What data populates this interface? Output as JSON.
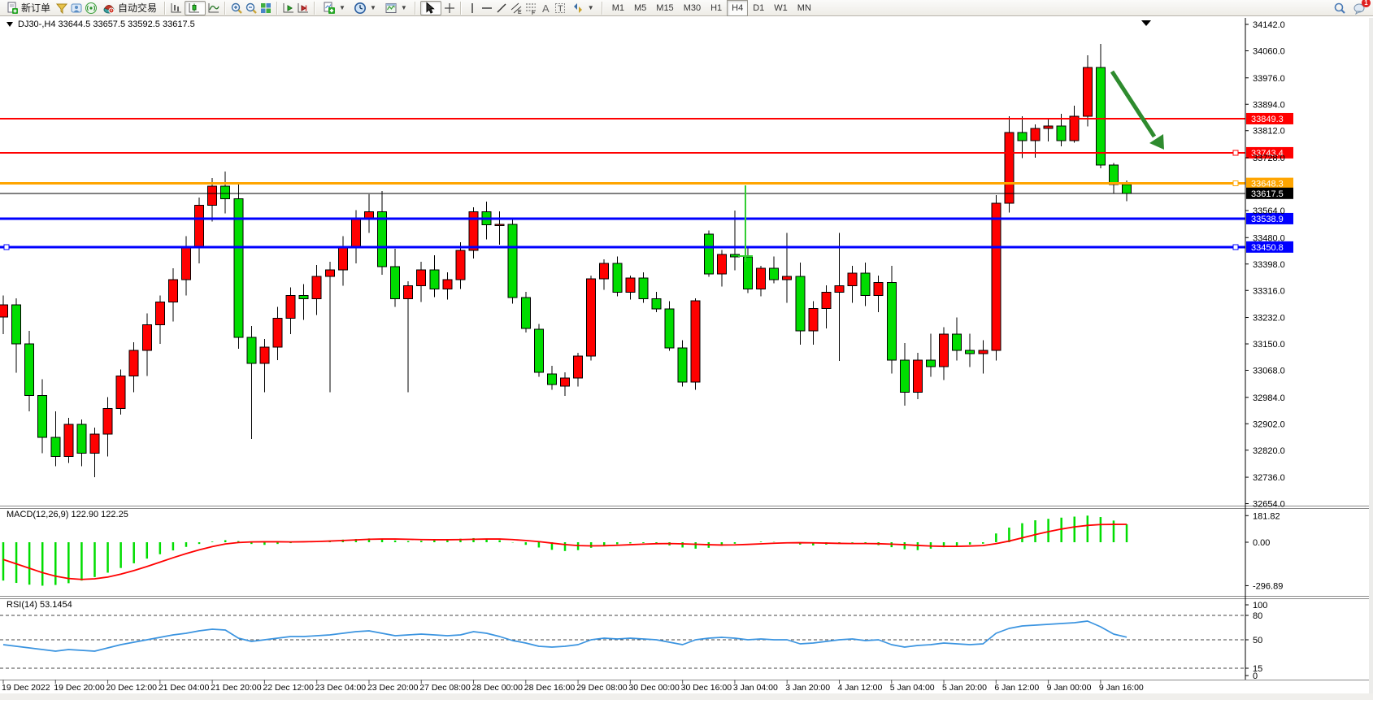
{
  "toolbar": {
    "new_order": "新订单",
    "auto_trading": "自动交易",
    "timeframes": [
      "M1",
      "M5",
      "M15",
      "M30",
      "H1",
      "H4",
      "D1",
      "W1",
      "MN"
    ],
    "active_timeframe": "H4",
    "notification_badge": "1"
  },
  "chart": {
    "title": "DJ30-,H4  33644.5 33657.5 33592.5 33617.5",
    "symbol": "DJ30-",
    "period": "H4",
    "current_price": "33617.5",
    "price_axis_ticks": [
      "34142.0",
      "34060.0",
      "33976.0",
      "33894.0",
      "33812.0",
      "33728.0",
      "33564.0",
      "33480.0",
      "33398.0",
      "33316.0",
      "33232.0",
      "33150.0",
      "33068.0",
      "32984.0",
      "32902.0",
      "32820.0",
      "32736.0",
      "32654.0"
    ],
    "levels": [
      {
        "label": "33849.3",
        "price": 33849.3,
        "color": "#ff0000",
        "width": 2,
        "handle_left": false,
        "handle_right": false
      },
      {
        "label": "33743.4",
        "price": 33743.4,
        "color": "#ff0000",
        "width": 2,
        "handle_left": false,
        "handle_right": true
      },
      {
        "label": "33648.3",
        "price": 33648.3,
        "color": "#ffa500",
        "width": 3,
        "handle_left": false,
        "handle_right": true
      },
      {
        "label": "33617.5",
        "price": 33617.5,
        "color": "#000000",
        "width": 1,
        "handle_left": false,
        "handle_right": false
      },
      {
        "label": "33538.9",
        "price": 33538.9,
        "color": "#0000ff",
        "width": 3,
        "handle_left": false,
        "handle_right": false
      },
      {
        "label": "33450.8",
        "price": 33450.8,
        "color": "#0000ff",
        "width": 3,
        "handle_left": true,
        "handle_right": true
      }
    ],
    "time_axis": [
      "19 Dec 2022",
      "19 Dec 20:00",
      "20 Dec 12:00",
      "21 Dec 04:00",
      "21 Dec 20:00",
      "22 Dec 12:00",
      "23 Dec 04:00",
      "23 Dec 20:00",
      "27 Dec 08:00",
      "28 Dec 00:00",
      "28 Dec 16:00",
      "29 Dec 08:00",
      "30 Dec 00:00",
      "30 Dec 16:00",
      "3 Jan 04:00",
      "3 Jan 20:00",
      "4 Jan 12:00",
      "5 Jan 04:00",
      "5 Jan 20:00",
      "6 Jan 12:00",
      "9 Jan 00:00",
      "9 Jan 16:00"
    ]
  },
  "chart_data": {
    "type": "candlestick",
    "symbol": "DJ30-",
    "timeframe": "H4",
    "title": "DJ30-,H4",
    "ylim_main": [
      32654,
      34142
    ],
    "bull_color": "#ff0000",
    "bear_color": "#00dd00",
    "note": "Chinese color convention: red = up candle, green = down candle",
    "candles_ohlc": [
      [
        33233,
        33300,
        33180,
        33271
      ],
      [
        33271,
        33292,
        33060,
        33150
      ],
      [
        33150,
        33190,
        32940,
        32990
      ],
      [
        32990,
        33040,
        32810,
        32860
      ],
      [
        32860,
        32940,
        32770,
        32800
      ],
      [
        32800,
        32920,
        32780,
        32900
      ],
      [
        32900,
        32915,
        32770,
        32810
      ],
      [
        32810,
        32890,
        32736,
        32870
      ],
      [
        32870,
        32985,
        32800,
        32950
      ],
      [
        32950,
        33070,
        32930,
        33050
      ],
      [
        33050,
        33155,
        33000,
        33130
      ],
      [
        33130,
        33245,
        33050,
        33210
      ],
      [
        33210,
        33300,
        33150,
        33280
      ],
      [
        33280,
        33385,
        33220,
        33350
      ],
      [
        33350,
        33485,
        33300,
        33450
      ],
      [
        33450,
        33605,
        33400,
        33580
      ],
      [
        33580,
        33665,
        33530,
        33640
      ],
      [
        33640,
        33685,
        33555,
        33600
      ],
      [
        33600,
        33645,
        33135,
        33170
      ],
      [
        33170,
        33205,
        32855,
        33090
      ],
      [
        33090,
        33165,
        33000,
        33140
      ],
      [
        33140,
        33265,
        33100,
        33230
      ],
      [
        33230,
        33325,
        33180,
        33300
      ],
      [
        33300,
        33335,
        33225,
        33290
      ],
      [
        33290,
        33395,
        33240,
        33360
      ],
      [
        33360,
        33405,
        33000,
        33380
      ],
      [
        33380,
        33485,
        33330,
        33450
      ],
      [
        33450,
        33565,
        33400,
        33540
      ],
      [
        33540,
        33615,
        33495,
        33560
      ],
      [
        33560,
        33625,
        33365,
        33390
      ],
      [
        33390,
        33445,
        33265,
        33290
      ],
      [
        33290,
        33345,
        33000,
        33330
      ],
      [
        33330,
        33405,
        33280,
        33380
      ],
      [
        33380,
        33425,
        33295,
        33320
      ],
      [
        33320,
        33372,
        33288,
        33350
      ],
      [
        33350,
        33465,
        33320,
        33440
      ],
      [
        33440,
        33574,
        33415,
        33560
      ],
      [
        33560,
        33592,
        33475,
        33520
      ],
      [
        33520,
        33562,
        33458,
        33521
      ],
      [
        33521,
        33542,
        33275,
        33294
      ],
      [
        33294,
        33312,
        33185,
        33198
      ],
      [
        33196,
        33212,
        33048,
        33062
      ],
      [
        33057,
        33082,
        33008,
        33024
      ],
      [
        33019,
        33062,
        32988,
        33044
      ],
      [
        33044,
        33122,
        33018,
        33112
      ],
      [
        33112,
        33362,
        33098,
        33352
      ],
      [
        33352,
        33412,
        33318,
        33400
      ],
      [
        33400,
        33422,
        33298,
        33310
      ],
      [
        33310,
        33362,
        33288,
        33354
      ],
      [
        33354,
        33372,
        33278,
        33290
      ],
      [
        33290,
        33312,
        33248,
        33258
      ],
      [
        33258,
        33282,
        33128,
        33137
      ],
      [
        33137,
        33162,
        33018,
        33031
      ],
      [
        33031,
        33292,
        33008,
        33284
      ],
      [
        33491,
        33502,
        33358,
        33367
      ],
      [
        33367,
        33442,
        33328,
        33428
      ],
      [
        33428,
        33564,
        33378,
        33420
      ],
      [
        33420,
        33452,
        33308,
        33320
      ],
      [
        33320,
        33392,
        33298,
        33385
      ],
      [
        33385,
        33422,
        33338,
        33350
      ],
      [
        33350,
        33494,
        33278,
        33360
      ],
      [
        33360,
        33402,
        33148,
        33190
      ],
      [
        33190,
        33282,
        33148,
        33260
      ],
      [
        33260,
        33332,
        33198,
        33310
      ],
      [
        33310,
        33494,
        33097,
        33330
      ],
      [
        33330,
        33392,
        33278,
        33370
      ],
      [
        33370,
        33402,
        33268,
        33300
      ],
      [
        33300,
        33362,
        33248,
        33340
      ],
      [
        33340,
        33392,
        33058,
        33100
      ],
      [
        33100,
        33152,
        32958,
        33000
      ],
      [
        33000,
        33122,
        32978,
        33100
      ],
      [
        33100,
        33182,
        33048,
        33080
      ],
      [
        33080,
        33202,
        33038,
        33180
      ],
      [
        33180,
        33232,
        33098,
        33130
      ],
      [
        33130,
        33182,
        33078,
        33120
      ],
      [
        33120,
        33162,
        33058,
        33130
      ],
      [
        33130,
        33612,
        33098,
        33587
      ],
      [
        33587,
        33857,
        33558,
        33806
      ],
      [
        33806,
        33857,
        33727,
        33781
      ],
      [
        33781,
        33832,
        33728,
        33819
      ],
      [
        33819,
        33852,
        33778,
        33827
      ],
      [
        33827,
        33864,
        33763,
        33781
      ],
      [
        33781,
        33890,
        33775,
        33857
      ],
      [
        33857,
        34046,
        33825,
        34008
      ],
      [
        34008,
        34081,
        33695,
        33705
      ],
      [
        33705,
        33712,
        33618,
        33645
      ],
      [
        33644.5,
        33657.5,
        33592.5,
        33617.5
      ]
    ],
    "macd": {
      "label": "MACD(12,26,9) 122.90 122.25",
      "main_value": "122.90",
      "signal_value": "122.25",
      "axis_ticks": [
        "181.82",
        "0.00",
        "-296.89"
      ],
      "histogram_color": "#00dd00",
      "signal_color": "#ff0000",
      "histogram": [
        -262,
        -278,
        -290,
        -297,
        -292,
        -280,
        -262,
        -238,
        -208,
        -176,
        -144,
        -112,
        -82,
        -56,
        -32,
        -12,
        4,
        14,
        8,
        -12,
        -18,
        -12,
        -6,
        2,
        8,
        12,
        18,
        22,
        26,
        20,
        12,
        8,
        10,
        14,
        18,
        24,
        28,
        24,
        14,
        -2,
        -18,
        -36,
        -52,
        -60,
        -54,
        -38,
        -24,
        -14,
        -8,
        -6,
        -12,
        -22,
        -36,
        -44,
        -38,
        -24,
        -10,
        0,
        4,
        2,
        -6,
        -16,
        -22,
        -16,
        -8,
        -4,
        -10,
        -20,
        -34,
        -48,
        -54,
        -44,
        -34,
        -24,
        -16,
        -10,
        60,
        100,
        130,
        150,
        160,
        168,
        175,
        181.82,
        172,
        148,
        122.9
      ],
      "signal": [
        -118,
        -148,
        -178,
        -208,
        -232,
        -248,
        -254,
        -250,
        -238,
        -218,
        -194,
        -166,
        -136,
        -106,
        -78,
        -52,
        -30,
        -12,
        -2,
        2,
        3,
        3,
        2,
        3,
        5,
        8,
        12,
        16,
        20,
        22,
        22,
        20,
        18,
        17,
        17,
        18,
        20,
        22,
        22,
        18,
        12,
        4,
        -6,
        -16,
        -23,
        -25,
        -24,
        -21,
        -17,
        -13,
        -10,
        -9,
        -11,
        -14,
        -17,
        -19,
        -18,
        -15,
        -11,
        -7,
        -4,
        -3,
        -4,
        -6,
        -8,
        -9,
        -9,
        -10,
        -13,
        -17,
        -22,
        -26,
        -28,
        -28,
        -26,
        -23,
        -10,
        8,
        30,
        52,
        72,
        90,
        105,
        115,
        121,
        122,
        122.25
      ]
    },
    "rsi": {
      "label": "RSI(14) 53.1454",
      "value": "53.1454",
      "axis_ticks": [
        "100",
        "80",
        "50",
        "15",
        "0"
      ],
      "level_lines": [
        80,
        50,
        15
      ],
      "line_color": "#3b94e0",
      "values": [
        44,
        42,
        40,
        38,
        36,
        38,
        37,
        36,
        40,
        44,
        47,
        50,
        53,
        56,
        58,
        61,
        63,
        62,
        52,
        48,
        50,
        52,
        54,
        54,
        55,
        56,
        58,
        60,
        61,
        58,
        55,
        56,
        57,
        56,
        55,
        56,
        60,
        58,
        54,
        49,
        46,
        42,
        41,
        42,
        44,
        50,
        52,
        51,
        52,
        51,
        50,
        47,
        44,
        50,
        52,
        53,
        52,
        50,
        51,
        50,
        50,
        45,
        46,
        48,
        50,
        51,
        49,
        50,
        44,
        41,
        43,
        44,
        46,
        45,
        44,
        45,
        58,
        64,
        67,
        68,
        69,
        70,
        71,
        73,
        66,
        57,
        53.15
      ]
    },
    "annotations": [
      {
        "type": "arrow",
        "direction": "down-right",
        "color": "#2e8b2e"
      },
      {
        "type": "vertical-entry-marker",
        "color": "#32cd32"
      },
      {
        "type": "chart-shift-triangle",
        "color": "#000000"
      }
    ]
  }
}
